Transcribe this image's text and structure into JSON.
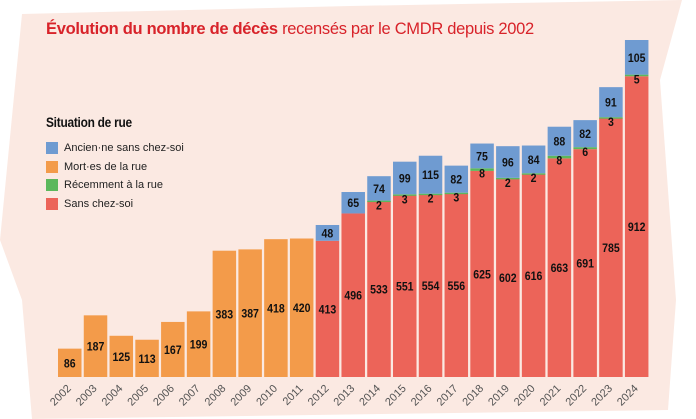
{
  "title_bold": "Évolution du nombre de décès",
  "title_rest": " recensés par le CMDR depuis 2002",
  "chart_data": {
    "type": "bar",
    "stacked": true,
    "legend_title": "Situation de rue",
    "legend_placement": "top-left",
    "grid": false,
    "ylim": [
      0,
      1030
    ],
    "categories": [
      "2002",
      "2003",
      "2004",
      "2005",
      "2006",
      "2007",
      "2008",
      "2009",
      "2010",
      "2011",
      "2012",
      "2013",
      "2014",
      "2015",
      "2016",
      "2017",
      "2018",
      "2019",
      "2020",
      "2021",
      "2022",
      "2023",
      "2024"
    ],
    "series": [
      {
        "name": "Sans chez-soi",
        "color": "#ec6459",
        "values": [
          0,
          0,
          0,
          0,
          0,
          0,
          0,
          0,
          0,
          0,
          413,
          496,
          533,
          551,
          554,
          556,
          625,
          602,
          616,
          663,
          691,
          785,
          912
        ]
      },
      {
        "name": "Récemment à la rue",
        "color": "#5cb85c",
        "values": [
          0,
          0,
          0,
          0,
          0,
          0,
          0,
          0,
          0,
          0,
          0,
          0,
          2,
          3,
          2,
          3,
          8,
          2,
          2,
          8,
          6,
          3,
          5
        ]
      },
      {
        "name": "Mort·es de la rue",
        "color": "#f39b4a",
        "values": [
          86,
          187,
          125,
          113,
          167,
          199,
          383,
          387,
          418,
          420,
          0,
          0,
          0,
          0,
          0,
          0,
          0,
          0,
          0,
          0,
          0,
          0,
          0
        ]
      },
      {
        "name": "Ancien·ne sans chez-soi",
        "color": "#6f9bd1",
        "values": [
          0,
          0,
          0,
          0,
          0,
          0,
          0,
          0,
          0,
          0,
          48,
          65,
          74,
          99,
          115,
          82,
          75,
          96,
          84,
          88,
          82,
          91,
          105
        ]
      }
    ],
    "legend_order": [
      3,
      2,
      1,
      0
    ],
    "background": "#fbe9e2",
    "title_color": "#d8232a"
  }
}
